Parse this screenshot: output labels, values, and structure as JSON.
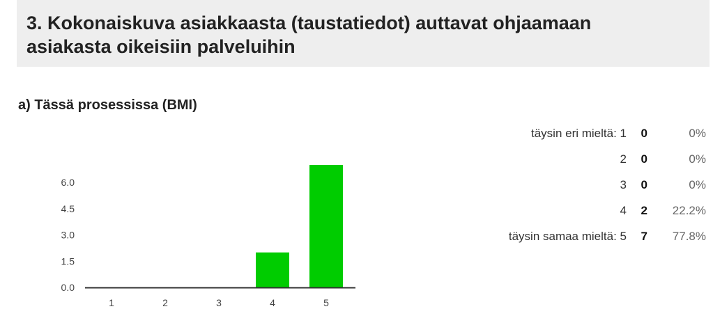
{
  "header": {
    "title": "3. Kokonaiskuva asiakkaasta (taustatiedot) auttavat ohjaamaan asiakasta oikeisiin palveluihin"
  },
  "section": {
    "subtitle": "a) Tässä prosessissa (BMI)"
  },
  "colors": {
    "bar": "#00cc00",
    "axis": "#333333"
  },
  "stats": [
    {
      "label": "täysin eri mieltä: 1",
      "count": "0",
      "pct": "0%"
    },
    {
      "label": "2",
      "count": "0",
      "pct": "0%"
    },
    {
      "label": "3",
      "count": "0",
      "pct": "0%"
    },
    {
      "label": "4",
      "count": "2",
      "pct": "22.2%"
    },
    {
      "label": "täysin samaa mieltä: 5",
      "count": "7",
      "pct": "77.8%"
    }
  ],
  "chart_data": {
    "type": "bar",
    "categories": [
      "1",
      "2",
      "3",
      "4",
      "5"
    ],
    "values": [
      0,
      0,
      0,
      2,
      7
    ],
    "yticks": [
      "0.0",
      "1.5",
      "3.0",
      "4.5",
      "6.0"
    ],
    "ylim": [
      0,
      7.5
    ],
    "title": "",
    "xlabel": "",
    "ylabel": ""
  }
}
